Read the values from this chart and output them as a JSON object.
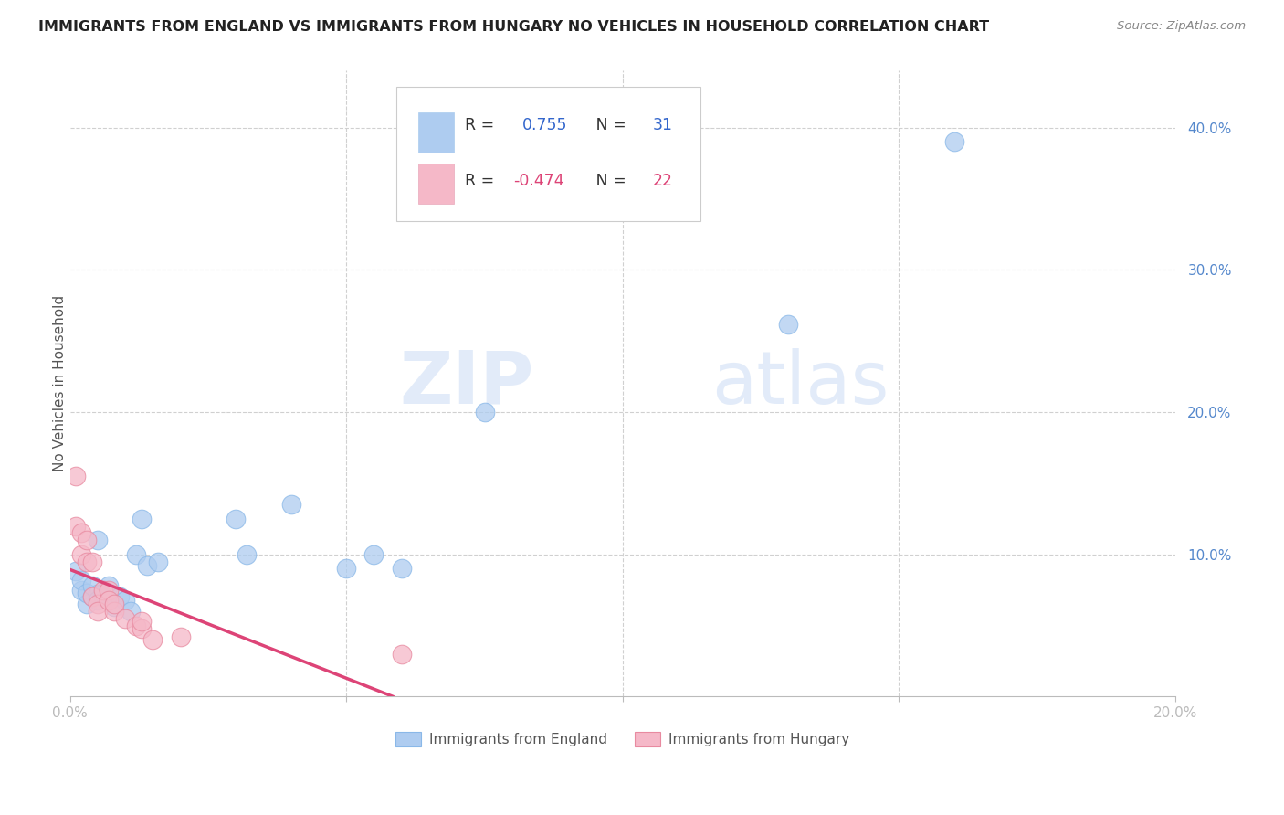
{
  "title": "IMMIGRANTS FROM ENGLAND VS IMMIGRANTS FROM HUNGARY NO VEHICLES IN HOUSEHOLD CORRELATION CHART",
  "source": "Source: ZipAtlas.com",
  "ylabel": "No Vehicles in Household",
  "xlim": [
    0.0,
    0.2
  ],
  "ylim": [
    0.0,
    0.44
  ],
  "xticks": [
    0.0,
    0.05,
    0.1,
    0.15,
    0.2
  ],
  "xticklabels": [
    "0.0%",
    "",
    "",
    "",
    "20.0%"
  ],
  "yticks_right": [
    0.1,
    0.2,
    0.3,
    0.4
  ],
  "yticklabels_right": [
    "10.0%",
    "20.0%",
    "30.0%",
    "40.0%"
  ],
  "england_color": "#aeccf0",
  "hungary_color": "#f5b8c8",
  "england_line_color": "#3366cc",
  "hungary_line_color": "#dd4477",
  "R_england": 0.755,
  "N_england": 31,
  "R_hungary": -0.474,
  "N_hungary": 22,
  "england_x": [
    0.001,
    0.002,
    0.002,
    0.003,
    0.003,
    0.004,
    0.004,
    0.005,
    0.005,
    0.005,
    0.006,
    0.006,
    0.007,
    0.007,
    0.008,
    0.009,
    0.01,
    0.011,
    0.012,
    0.013,
    0.014,
    0.016,
    0.03,
    0.032,
    0.04,
    0.05,
    0.055,
    0.06,
    0.075,
    0.13,
    0.16
  ],
  "england_y": [
    0.088,
    0.075,
    0.082,
    0.065,
    0.073,
    0.07,
    0.078,
    0.11,
    0.072,
    0.068,
    0.07,
    0.073,
    0.068,
    0.078,
    0.063,
    0.07,
    0.068,
    0.06,
    0.1,
    0.125,
    0.092,
    0.095,
    0.125,
    0.1,
    0.135,
    0.09,
    0.1,
    0.09,
    0.2,
    0.262,
    0.39
  ],
  "hungary_x": [
    0.001,
    0.001,
    0.002,
    0.002,
    0.003,
    0.003,
    0.004,
    0.004,
    0.005,
    0.005,
    0.006,
    0.007,
    0.007,
    0.008,
    0.008,
    0.01,
    0.012,
    0.013,
    0.013,
    0.015,
    0.02,
    0.06
  ],
  "hungary_y": [
    0.155,
    0.12,
    0.115,
    0.1,
    0.11,
    0.095,
    0.095,
    0.07,
    0.065,
    0.06,
    0.075,
    0.075,
    0.068,
    0.06,
    0.065,
    0.055,
    0.05,
    0.048,
    0.053,
    0.04,
    0.042,
    0.03
  ],
  "watermark_zip": "ZIP",
  "watermark_atlas": "atlas",
  "background_color": "#ffffff",
  "grid_color": "#d0d0d0",
  "legend_R_color_eng": "#3366cc",
  "legend_N_color_eng": "#3366cc",
  "legend_R_color_hun": "#dd4477",
  "legend_N_color_hun": "#dd4477"
}
